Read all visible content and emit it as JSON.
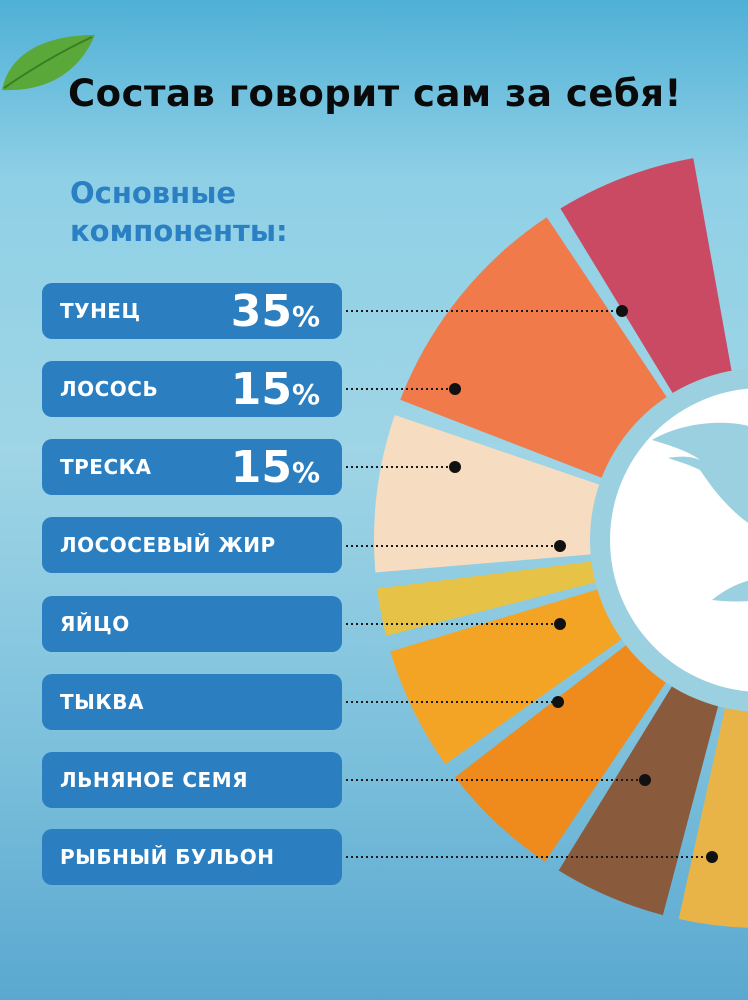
{
  "title": "Состав говорит сам за себя!",
  "subtitle": "Основные компоненты:",
  "ingredients": [
    {
      "name": "ТУНЕЦ",
      "percent": "35",
      "unit": "%",
      "color": "#c94a62"
    },
    {
      "name": "ЛОСОСЬ",
      "percent": "15",
      "unit": "%",
      "color": "#f07a4a"
    },
    {
      "name": "ТРЕСКА",
      "percent": "15",
      "unit": "%",
      "color": "#f6dcc0"
    },
    {
      "name": "ЛОСОСЕВЫЙ ЖИР",
      "color": "#e6c246"
    },
    {
      "name": "ЯЙЦО",
      "color": "#f4a424"
    },
    {
      "name": "ТЫКВА",
      "color": "#ef8a1c"
    },
    {
      "name": "ЛЬНЯНОЕ СЕМЯ",
      "color": "#8a5a3c"
    },
    {
      "name": "РЫБНЫЙ БУЛЬОН",
      "color": "#e8b448"
    }
  ],
  "colors": {
    "badge": "#2b7fc0",
    "subtitle": "#2a80c2",
    "ring": "#9bd0e0",
    "center": "#ffffff"
  },
  "icons": {
    "center": "fish-icon",
    "corner": "leaf-icon"
  }
}
